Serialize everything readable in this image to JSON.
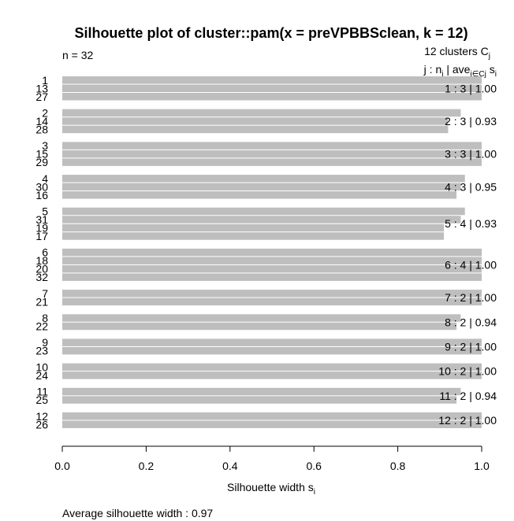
{
  "chart_data": {
    "type": "bar",
    "orientation": "horizontal",
    "title": "Silhouette plot of cluster::pam(x = preVPBBSclean, k = 12)",
    "n_label": "n = 32",
    "clusters_label": "12  clusters  C",
    "clusters_sub": "j",
    "header": {
      "part1": "j :  n",
      "part1_sub": "j",
      "part2": " | ave",
      "part2_sub": "i∈Cj",
      "part3": "  s",
      "part3_sub": "i"
    },
    "xlabel": "Silhouette width s",
    "xlabel_sub": "i",
    "xlim": [
      0.0,
      1.0
    ],
    "ticks": [
      "0.0",
      "0.2",
      "0.4",
      "0.6",
      "0.8",
      "1.0"
    ],
    "tick_values": [
      0.0,
      0.2,
      0.4,
      0.6,
      0.8,
      1.0
    ],
    "footer": "Average silhouette width :  0.97",
    "bar_color": "#bebebe",
    "clusters": [
      {
        "summary": "1 :  3  |  1.00",
        "members": [
          {
            "id": "1",
            "s": 1.0
          },
          {
            "id": "13",
            "s": 1.0
          },
          {
            "id": "27",
            "s": 1.0
          }
        ]
      },
      {
        "summary": "2 :  3  |  0.93",
        "members": [
          {
            "id": "2",
            "s": 0.95
          },
          {
            "id": "14",
            "s": 0.92
          },
          {
            "id": "28",
            "s": 0.92
          }
        ]
      },
      {
        "summary": "3 :  3  |  1.00",
        "members": [
          {
            "id": "3",
            "s": 1.0
          },
          {
            "id": "15",
            "s": 1.0
          },
          {
            "id": "29",
            "s": 1.0
          }
        ]
      },
      {
        "summary": "4 :  3  |  0.95",
        "members": [
          {
            "id": "4",
            "s": 0.96
          },
          {
            "id": "30",
            "s": 0.95
          },
          {
            "id": "16",
            "s": 0.94
          }
        ]
      },
      {
        "summary": "5 :  4  |  0.93",
        "members": [
          {
            "id": "5",
            "s": 0.96
          },
          {
            "id": "31",
            "s": 0.95
          },
          {
            "id": "19",
            "s": 0.91
          },
          {
            "id": "17",
            "s": 0.91
          }
        ]
      },
      {
        "summary": "6 :  4  |  1.00",
        "members": [
          {
            "id": "6",
            "s": 1.0
          },
          {
            "id": "18",
            "s": 1.0
          },
          {
            "id": "20",
            "s": 1.0
          },
          {
            "id": "32",
            "s": 1.0
          }
        ]
      },
      {
        "summary": "7 :  2  |  1.00",
        "members": [
          {
            "id": "7",
            "s": 1.0
          },
          {
            "id": "21",
            "s": 1.0
          }
        ]
      },
      {
        "summary": "8 :  2  |  0.94",
        "members": [
          {
            "id": "8",
            "s": 0.95
          },
          {
            "id": "22",
            "s": 0.94
          }
        ]
      },
      {
        "summary": "9 :  2  |  1.00",
        "members": [
          {
            "id": "9",
            "s": 1.0
          },
          {
            "id": "23",
            "s": 1.0
          }
        ]
      },
      {
        "summary": "10 :  2  |  1.00",
        "members": [
          {
            "id": "10",
            "s": 1.0
          },
          {
            "id": "24",
            "s": 1.0
          }
        ]
      },
      {
        "summary": "11 :  2  |  0.94",
        "members": [
          {
            "id": "11",
            "s": 0.95
          },
          {
            "id": "25",
            "s": 0.94
          }
        ]
      },
      {
        "summary": "12 :  2  |  1.00",
        "members": [
          {
            "id": "12",
            "s": 1.0
          },
          {
            "id": "26",
            "s": 1.0
          }
        ]
      }
    ]
  }
}
